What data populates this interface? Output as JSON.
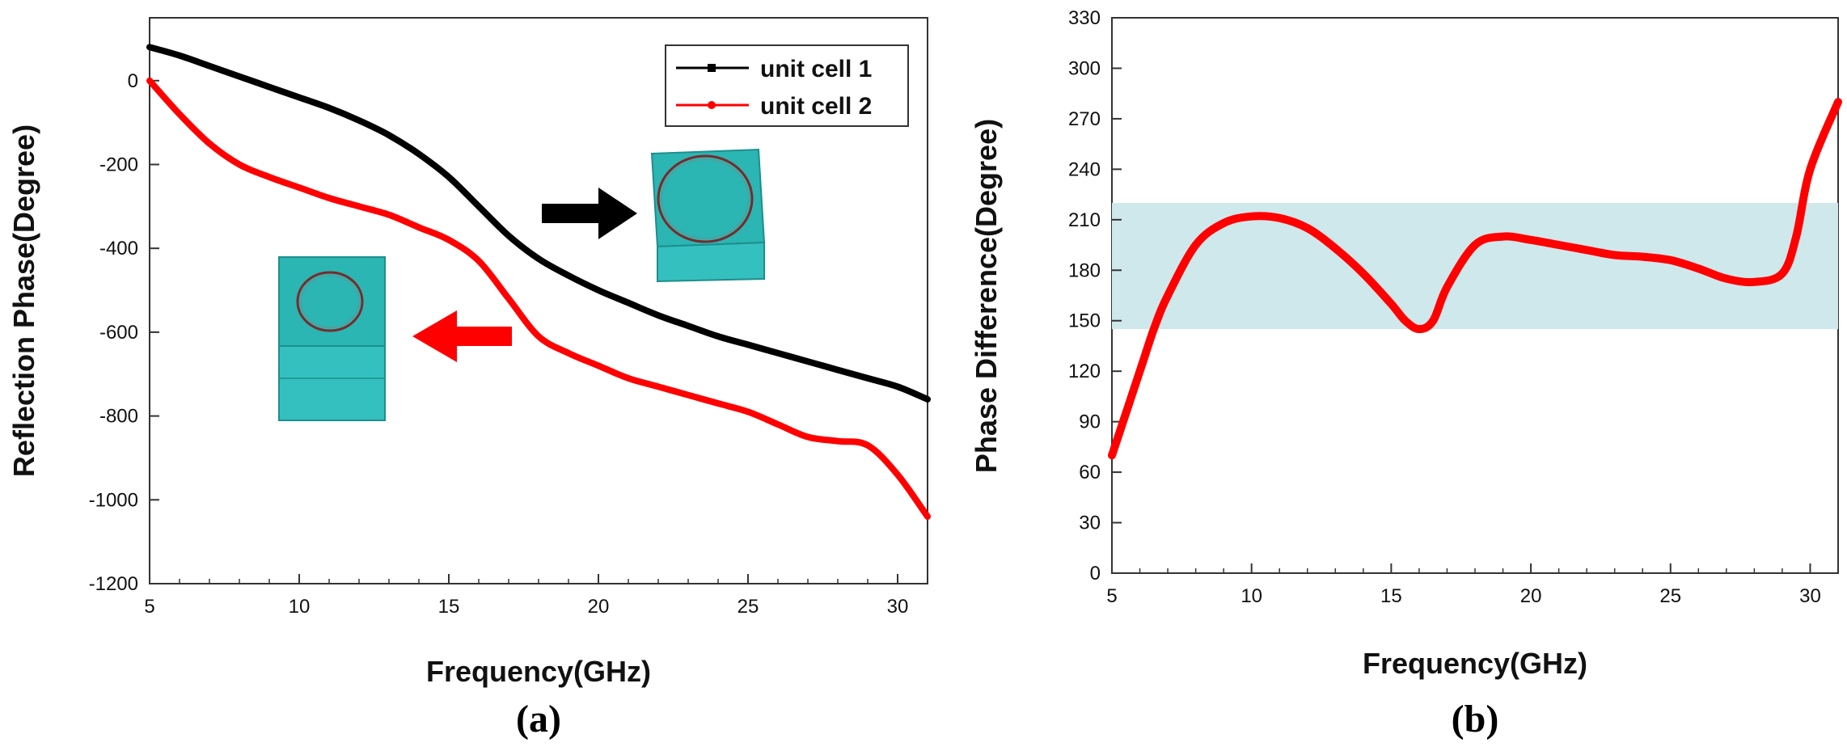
{
  "chart_data": [
    {
      "type": "line",
      "panel": "(a)",
      "xlabel": "Frequency(GHz)",
      "ylabel": "Reflection Phase(Degree)",
      "xlim": [
        5,
        31
      ],
      "ylim": [
        -1200,
        150
      ],
      "xticks": [
        5,
        10,
        15,
        20,
        25,
        30
      ],
      "yticks": [
        0,
        -200,
        -400,
        -600,
        -800,
        -1000,
        -1200
      ],
      "legend_position": "top-right",
      "series": [
        {
          "name": "unit cell 1",
          "color": "#000000",
          "x": [
            5,
            6,
            7,
            8,
            9,
            10,
            11,
            12,
            13,
            14,
            15,
            16,
            17,
            18,
            19,
            20,
            21,
            22,
            23,
            24,
            25,
            26,
            27,
            28,
            29,
            30,
            31
          ],
          "y": [
            80,
            60,
            35,
            10,
            -15,
            -40,
            -65,
            -95,
            -130,
            -175,
            -230,
            -300,
            -370,
            -425,
            -465,
            -500,
            -530,
            -560,
            -585,
            -610,
            -630,
            -650,
            -670,
            -690,
            -710,
            -730,
            -760
          ]
        },
        {
          "name": "unit cell 2",
          "color": "#ff0000",
          "x": [
            5,
            6,
            7,
            8,
            9,
            10,
            11,
            12,
            13,
            14,
            15,
            16,
            17,
            18,
            19,
            20,
            21,
            22,
            23,
            24,
            25,
            26,
            27,
            28,
            29,
            30,
            31
          ],
          "y": [
            0,
            -80,
            -150,
            -200,
            -230,
            -255,
            -280,
            -300,
            -320,
            -350,
            -380,
            -430,
            -520,
            -610,
            -650,
            -680,
            -710,
            -730,
            -750,
            -770,
            -790,
            -820,
            -850,
            -860,
            -870,
            -940,
            -1040
          ]
        }
      ],
      "annotations": [
        "right arrow pointing to unit cell 1 (large ring)",
        "left arrow pointing to unit cell 2 (small ring)"
      ]
    },
    {
      "type": "line",
      "panel": "(b)",
      "xlabel": "Frequency(GHz)",
      "ylabel": "Phase Difference(Degree)",
      "xlim": [
        5,
        31
      ],
      "ylim": [
        0,
        330
      ],
      "xticks": [
        5,
        10,
        15,
        20,
        25,
        30
      ],
      "yticks": [
        0,
        30,
        60,
        90,
        120,
        150,
        180,
        210,
        240,
        270,
        300,
        330
      ],
      "shaded_band": [
        145,
        220
      ],
      "series": [
        {
          "name": "phase difference",
          "color": "#ff0000",
          "x": [
            5,
            6,
            6.5,
            7,
            8,
            9,
            10,
            11,
            12,
            13,
            14,
            15,
            15.5,
            16,
            16.5,
            17,
            18,
            19,
            20,
            21,
            22,
            23,
            24,
            25,
            26,
            27,
            28,
            29,
            29.5,
            30,
            31
          ],
          "y": [
            70,
            120,
            145,
            165,
            195,
            208,
            212,
            211,
            205,
            193,
            178,
            160,
            150,
            145,
            150,
            170,
            195,
            200,
            198,
            195,
            192,
            189,
            188,
            186,
            181,
            175,
            173,
            178,
            200,
            240,
            280
          ]
        }
      ]
    }
  ],
  "labels": {
    "panel_a": "(a)",
    "panel_b": "(b)"
  },
  "colors": {
    "band": "#cfe8ec",
    "cell_face": "#2bb5b3",
    "cell_top": "#1fa8a6"
  }
}
